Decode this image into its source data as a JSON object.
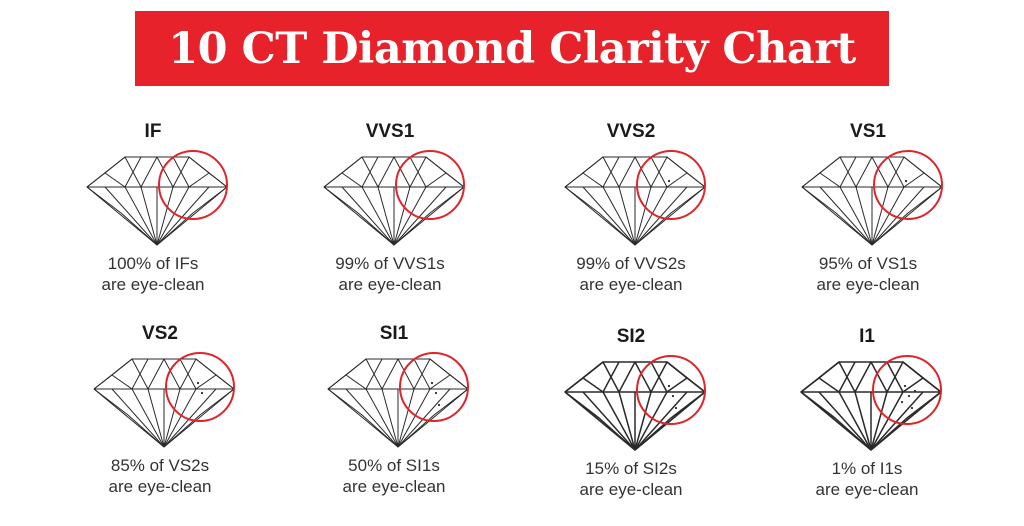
{
  "title": "10 CT Diamond Clarity Chart",
  "colors": {
    "banner": "#e8222a",
    "circle": "#e0242b",
    "line": "#2a2a2a"
  },
  "grades": [
    {
      "label": "IF",
      "line1": "100% of IFs",
      "line2": "are eye-clean",
      "eye_clean_percent": 100,
      "inclusions": 0
    },
    {
      "label": "VVS1",
      "line1": "99% of VVS1s",
      "line2": "are eye-clean",
      "eye_clean_percent": 99,
      "inclusions": 0
    },
    {
      "label": "VVS2",
      "line1": "99% of VVS2s",
      "line2": "are eye-clean",
      "eye_clean_percent": 99,
      "inclusions": 1
    },
    {
      "label": "VS1",
      "line1": "95% of VS1s",
      "line2": "are eye-clean",
      "eye_clean_percent": 95,
      "inclusions": 1
    },
    {
      "label": "VS2",
      "line1": "85% of VS2s",
      "line2": "are eye-clean",
      "eye_clean_percent": 85,
      "inclusions": 2
    },
    {
      "label": "SI1",
      "line1": "50% of SI1s",
      "line2": "are eye-clean",
      "eye_clean_percent": 50,
      "inclusions": 3
    },
    {
      "label": "SI2",
      "line1": "15% of SI2s",
      "line2": "are eye-clean",
      "eye_clean_percent": 15,
      "inclusions": 3
    },
    {
      "label": "I1",
      "line1": "1% of I1s",
      "line2": "are eye-clean",
      "eye_clean_percent": 1,
      "inclusions": 5
    }
  ]
}
